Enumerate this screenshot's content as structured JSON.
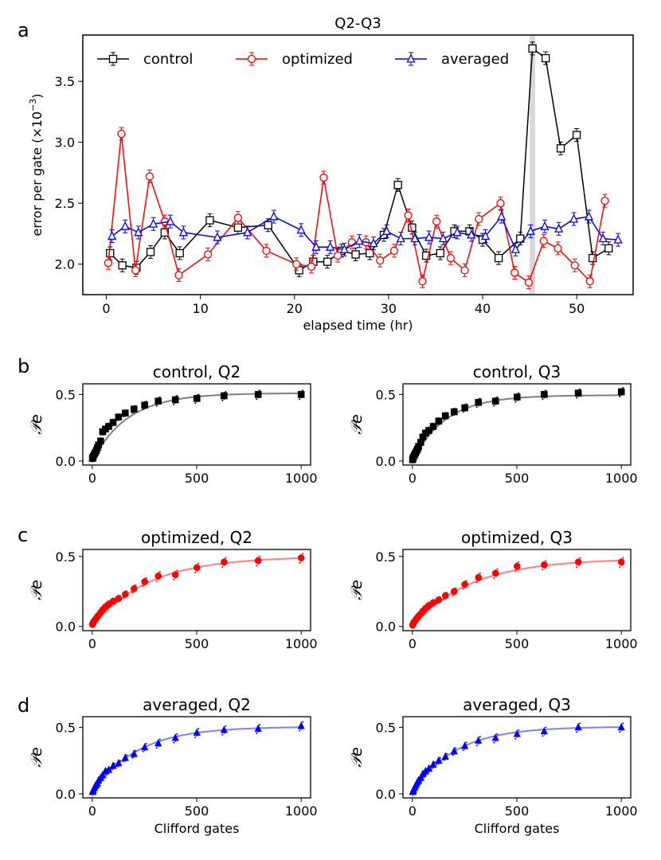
{
  "panel_labels": [
    "a",
    "b",
    "c",
    "d"
  ],
  "colors": {
    "control": "#000000",
    "optimized": "#ff0000",
    "averaged": "#0000ff",
    "highlight": "#d9d9d9"
  },
  "chart_data": [
    {
      "type": "line",
      "panel": "a",
      "title": "Q2-Q3",
      "xlabel": "elapsed time (hr)",
      "ylabel": "error per gate (×10⁻³)",
      "ylabel_base": "error per gate (×10",
      "ylabel_exp": "−3",
      "ylabel_close": ")",
      "xlim": [
        -2.5,
        56
      ],
      "ylim": [
        1.75,
        3.88
      ],
      "xticks": [
        0,
        10,
        20,
        30,
        40,
        50
      ],
      "yticks": [
        2.0,
        2.5,
        3.0,
        3.5
      ],
      "ytick_labels": [
        "2.0",
        "2.5",
        "3.0",
        "3.5"
      ],
      "highlight_x": 45.3,
      "legend_position": "top",
      "series": [
        {
          "name": "control",
          "color": "#000000",
          "marker": "square",
          "x": [
            0.4,
            1.7,
            3.2,
            4.7,
            6.2,
            7.8,
            11.0,
            14.0,
            17.2,
            20.5,
            22.0,
            23.5,
            25.0,
            26.5,
            28.0,
            29.5,
            31.0,
            32.5,
            34.0,
            35.5,
            37.0,
            38.6,
            40.0,
            41.7,
            44.0,
            45.3,
            46.7,
            48.3,
            50.0,
            51.7,
            53.4
          ],
          "y": [
            2.09,
            1.99,
            1.97,
            2.1,
            2.26,
            2.09,
            2.36,
            2.3,
            2.32,
            1.95,
            2.02,
            2.02,
            2.11,
            2.08,
            2.09,
            2.24,
            2.65,
            2.3,
            2.07,
            2.09,
            2.27,
            2.27,
            2.2,
            2.05,
            2.21,
            3.77,
            3.69,
            2.95,
            3.06,
            2.05,
            2.13
          ]
        },
        {
          "name": "optimized",
          "color": "#ff0000",
          "marker": "circle",
          "x": [
            0.2,
            1.6,
            3.1,
            4.6,
            6.2,
            7.7,
            10.8,
            14.0,
            17.0,
            20.2,
            21.8,
            23.1,
            24.6,
            26.1,
            27.6,
            29.1,
            30.6,
            32.1,
            33.6,
            35.1,
            36.6,
            38.1,
            39.6,
            41.9,
            43.4,
            44.9,
            46.5,
            48.0,
            49.8,
            51.4,
            53.0
          ],
          "y": [
            2.01,
            3.07,
            1.95,
            2.72,
            2.35,
            1.91,
            2.08,
            2.38,
            2.11,
            2.0,
            1.98,
            2.71,
            2.07,
            2.18,
            2.18,
            2.03,
            2.11,
            2.4,
            1.86,
            2.35,
            2.05,
            1.95,
            2.37,
            2.5,
            1.93,
            1.85,
            2.19,
            2.13,
            1.99,
            1.86,
            2.52
          ]
        },
        {
          "name": "averaged",
          "color": "#0000ff",
          "marker": "triangle",
          "x": [
            0.6,
            2.0,
            3.4,
            5.0,
            6.8,
            8.2,
            11.8,
            15.0,
            17.8,
            20.7,
            22.3,
            23.8,
            25.3,
            26.9,
            28.4,
            29.8,
            31.3,
            32.8,
            34.3,
            35.8,
            37.3,
            38.8,
            40.3,
            42.0,
            43.5,
            45.1,
            46.6,
            48.1,
            49.7,
            51.3,
            52.8,
            54.4
          ],
          "y": [
            2.23,
            2.31,
            2.26,
            2.33,
            2.35,
            2.26,
            2.22,
            2.26,
            2.39,
            2.28,
            2.14,
            2.14,
            2.12,
            2.19,
            2.17,
            2.27,
            2.21,
            2.21,
            2.22,
            2.21,
            2.26,
            2.24,
            2.23,
            2.39,
            2.12,
            2.27,
            2.31,
            2.29,
            2.37,
            2.39,
            2.21,
            2.2
          ]
        }
      ]
    },
    {
      "type": "scatter",
      "panel": "b",
      "title": "control, Q2",
      "ylabel": "𝒫e",
      "xlabel": "",
      "color": "#000000",
      "marker": "square",
      "xlim": [
        -45,
        1045
      ],
      "ylim": [
        -0.03,
        0.58
      ],
      "xticks": [
        0,
        500,
        1000
      ],
      "yticks": [
        0.0,
        0.5
      ],
      "ytick_labels": [
        "0.0",
        "0.5"
      ],
      "x": [
        1,
        3,
        5,
        10,
        15,
        20,
        25,
        30,
        40,
        50,
        63,
        79,
        100,
        126,
        158,
        200,
        251,
        316,
        398,
        501,
        631,
        794,
        1000
      ],
      "y": [
        0.02,
        0.025,
        0.035,
        0.05,
        0.065,
        0.08,
        0.1,
        0.12,
        0.15,
        0.22,
        0.24,
        0.26,
        0.29,
        0.33,
        0.36,
        0.39,
        0.42,
        0.45,
        0.46,
        0.47,
        0.49,
        0.5,
        0.5
      ],
      "fit": {
        "A": 0.51,
        "tau": 170
      }
    },
    {
      "type": "scatter",
      "panel": "b",
      "title": "control, Q3",
      "ylabel": "𝒫e",
      "xlabel": "",
      "color": "#000000",
      "marker": "square",
      "xlim": [
        -45,
        1045
      ],
      "ylim": [
        -0.03,
        0.58
      ],
      "xticks": [
        0,
        500,
        1000
      ],
      "yticks": [
        0.0,
        0.5
      ],
      "ytick_labels": [
        "0.0",
        "0.5"
      ],
      "x": [
        1,
        3,
        5,
        10,
        15,
        20,
        25,
        30,
        40,
        50,
        63,
        79,
        100,
        126,
        158,
        200,
        251,
        316,
        398,
        501,
        631,
        794,
        1000
      ],
      "y": [
        0.01,
        0.02,
        0.03,
        0.045,
        0.06,
        0.075,
        0.09,
        0.11,
        0.14,
        0.18,
        0.21,
        0.23,
        0.26,
        0.3,
        0.34,
        0.37,
        0.4,
        0.44,
        0.45,
        0.48,
        0.5,
        0.51,
        0.52
      ],
      "fit": {
        "A": 0.495,
        "tau": 160
      }
    },
    {
      "type": "scatter",
      "panel": "c",
      "title": "optimized, Q2",
      "ylabel": "𝒫e",
      "xlabel": "",
      "color": "#ff0000",
      "marker": "circle",
      "xlim": [
        -45,
        1045
      ],
      "ylim": [
        -0.03,
        0.55
      ],
      "xticks": [
        0,
        500,
        1000
      ],
      "yticks": [
        0.0,
        0.5
      ],
      "ytick_labels": [
        "0.0",
        "0.5"
      ],
      "x": [
        1,
        3,
        5,
        10,
        15,
        20,
        25,
        30,
        40,
        50,
        63,
        79,
        100,
        126,
        158,
        200,
        251,
        316,
        398,
        501,
        631,
        794,
        1000
      ],
      "y": [
        0.015,
        0.02,
        0.03,
        0.04,
        0.05,
        0.06,
        0.07,
        0.08,
        0.1,
        0.12,
        0.14,
        0.16,
        0.18,
        0.2,
        0.23,
        0.27,
        0.32,
        0.36,
        0.37,
        0.42,
        0.46,
        0.47,
        0.49
      ],
      "fit": {
        "A": 0.5,
        "tau": 270
      }
    },
    {
      "type": "scatter",
      "panel": "c",
      "title": "optimized, Q3",
      "ylabel": "𝒫e",
      "xlabel": "",
      "color": "#ff0000",
      "marker": "circle",
      "xlim": [
        -45,
        1045
      ],
      "ylim": [
        -0.03,
        0.55
      ],
      "xticks": [
        0,
        500,
        1000
      ],
      "yticks": [
        0.0,
        0.5
      ],
      "ytick_labels": [
        "0.0",
        "0.5"
      ],
      "x": [
        1,
        3,
        5,
        10,
        15,
        20,
        25,
        30,
        40,
        50,
        63,
        79,
        100,
        126,
        158,
        200,
        251,
        316,
        398,
        501,
        631,
        794,
        1000
      ],
      "y": [
        0.01,
        0.015,
        0.025,
        0.035,
        0.045,
        0.055,
        0.065,
        0.075,
        0.09,
        0.11,
        0.13,
        0.15,
        0.17,
        0.19,
        0.22,
        0.25,
        0.3,
        0.35,
        0.38,
        0.43,
        0.44,
        0.46,
        0.46
      ],
      "fit": {
        "A": 0.485,
        "tau": 280
      }
    },
    {
      "type": "scatter",
      "panel": "d",
      "title": "averaged, Q2",
      "ylabel": "𝒫e",
      "xlabel": "Clifford gates",
      "color": "#0000ff",
      "marker": "triangle",
      "xlim": [
        -45,
        1045
      ],
      "ylim": [
        -0.03,
        0.58
      ],
      "xticks": [
        0,
        500,
        1000
      ],
      "yticks": [
        0.0,
        0.5
      ],
      "ytick_labels": [
        "0.0",
        "0.5"
      ],
      "x": [
        1,
        3,
        5,
        10,
        15,
        20,
        25,
        30,
        40,
        50,
        63,
        79,
        100,
        126,
        158,
        200,
        251,
        316,
        398,
        501,
        631,
        794,
        1000
      ],
      "y": [
        0.015,
        0.02,
        0.03,
        0.045,
        0.06,
        0.07,
        0.08,
        0.1,
        0.12,
        0.14,
        0.17,
        0.18,
        0.21,
        0.23,
        0.27,
        0.3,
        0.35,
        0.38,
        0.42,
        0.46,
        0.48,
        0.49,
        0.51
      ],
      "fit": {
        "A": 0.505,
        "tau": 210
      }
    },
    {
      "type": "scatter",
      "panel": "d",
      "title": "averaged, Q3",
      "ylabel": "𝒫e",
      "xlabel": "Clifford gates",
      "color": "#0000ff",
      "marker": "triangle",
      "xlim": [
        -45,
        1045
      ],
      "ylim": [
        -0.03,
        0.58
      ],
      "xticks": [
        0,
        500,
        1000
      ],
      "yticks": [
        0.0,
        0.5
      ],
      "ytick_labels": [
        "0.0",
        "0.5"
      ],
      "x": [
        1,
        3,
        5,
        10,
        15,
        20,
        25,
        30,
        40,
        50,
        63,
        79,
        100,
        126,
        158,
        200,
        251,
        316,
        398,
        501,
        631,
        794,
        1000
      ],
      "y": [
        0.015,
        0.02,
        0.03,
        0.045,
        0.06,
        0.075,
        0.09,
        0.1,
        0.12,
        0.15,
        0.17,
        0.19,
        0.22,
        0.25,
        0.28,
        0.32,
        0.36,
        0.4,
        0.42,
        0.45,
        0.47,
        0.5,
        0.5
      ],
      "fit": {
        "A": 0.505,
        "tau": 200
      }
    }
  ]
}
